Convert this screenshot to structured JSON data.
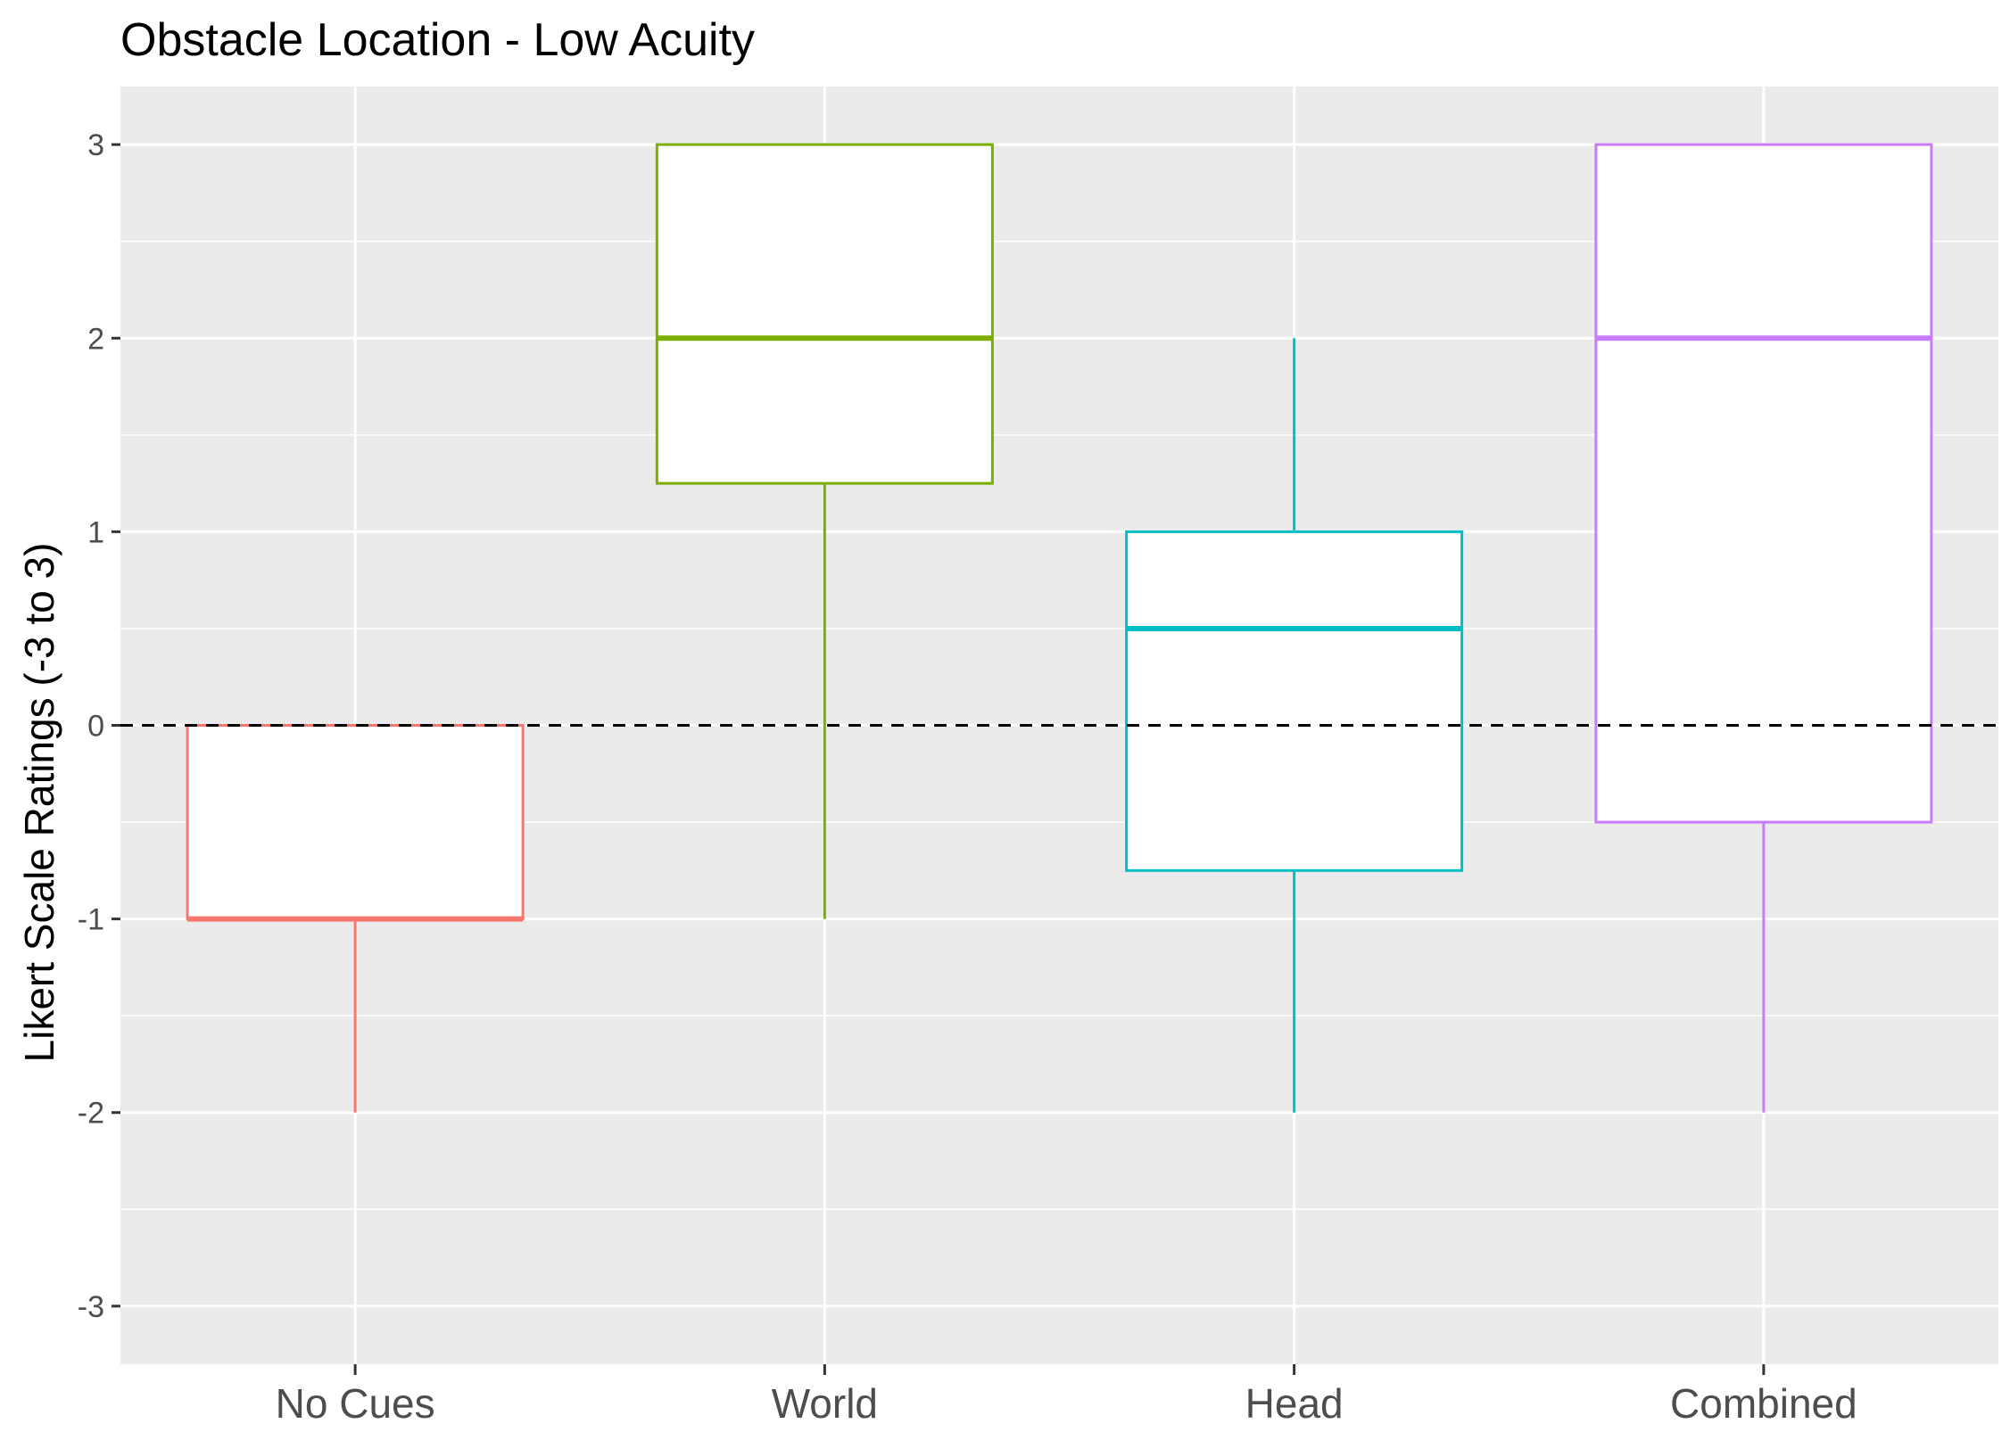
{
  "chart_data": {
    "type": "boxplot",
    "title": "Obstacle Location - Low Acuity",
    "xlabel": "",
    "ylabel": "Likert Scale Ratings (-3 to 3)",
    "ylim": [
      -3.3,
      3.3
    ],
    "y_ticks": [
      -3,
      -2,
      -1,
      0,
      1,
      2,
      3
    ],
    "y_tick_labels": [
      "-3",
      "-2",
      "-1",
      "0",
      "1",
      "2",
      "3"
    ],
    "grid": true,
    "legend": "none",
    "reference_line": {
      "y": 0,
      "style": "dashed",
      "color": "#000000"
    },
    "panel_background": "#ebebeb",
    "grid_color": "#ffffff",
    "categories": [
      "No Cues",
      "World",
      "Head",
      "Combined"
    ],
    "series": [
      {
        "category": "No Cues",
        "color": "#F8766D",
        "whisker_low": -2,
        "q1": -1,
        "median": -1,
        "q3": 0,
        "whisker_high": 0
      },
      {
        "category": "World",
        "color": "#7CAE00",
        "whisker_low": -1,
        "q1": 1.25,
        "median": 2,
        "q3": 3,
        "whisker_high": 3
      },
      {
        "category": "Head",
        "color": "#00BFC4",
        "whisker_low": -2,
        "q1": -0.75,
        "median": 0.5,
        "q3": 1,
        "whisker_high": 2
      },
      {
        "category": "Combined",
        "color": "#C77CFF",
        "whisker_low": -2,
        "q1": -0.5,
        "median": 2,
        "q3": 3,
        "whisker_high": 3
      }
    ]
  }
}
